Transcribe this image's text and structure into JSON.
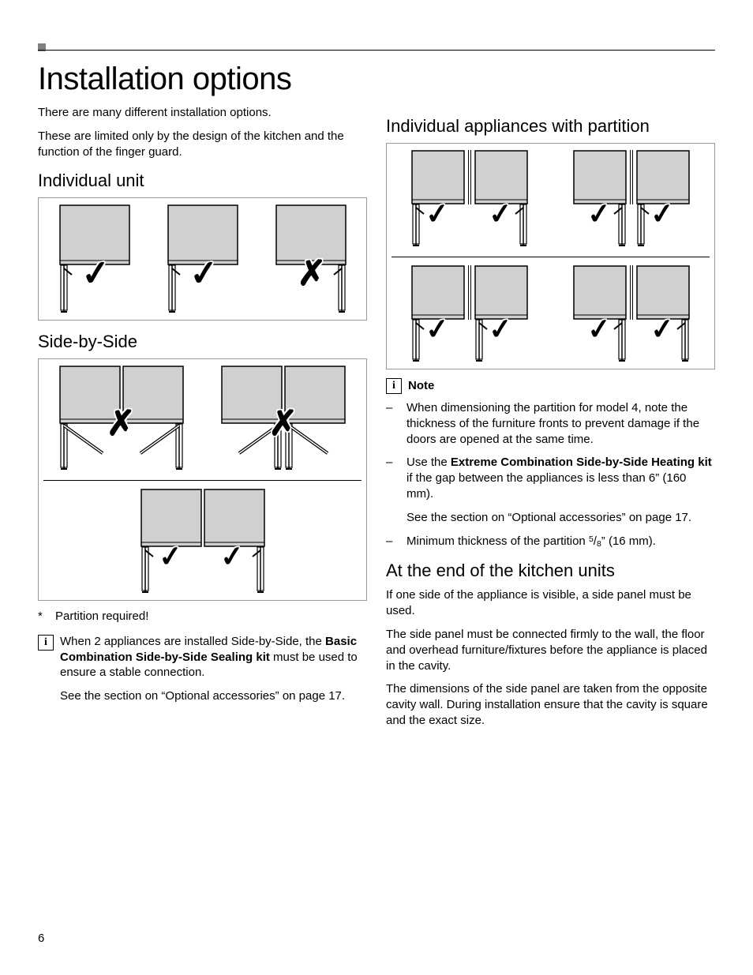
{
  "page_number": "6",
  "title": "Installation options",
  "intro": {
    "p1": "There are many different installation options.",
    "p2": "These are limited only by the design of the kitchen and the function of the finger guard."
  },
  "left": {
    "h_individual": "Individual unit",
    "h_sidebyside": "Side-by-Side",
    "footnote_marker": "*",
    "footnote": "Partition required!",
    "info_p1_a": "When 2 appliances are installed Side-by-Side, the ",
    "info_p1_bold": "Basic Combination Side-by-Side Sealing kit",
    "info_p1_b": " must be used to ensure a stable connection.",
    "info_p2": "See the section on “Optional accessories” on page 17."
  },
  "right": {
    "h_partition": "Individual appliances with partition",
    "note_label": "Note",
    "note_items": {
      "n1": "When dimensioning the partition for model 4, note the thickness of the furniture fronts to prevent damage if the doors are opened at the same time.",
      "n2_a": "Use the ",
      "n2_bold": "Extreme Combination Side-by-Side Heating kit",
      "n2_b": " if the gap between the appliances is less than 6” (160 mm).",
      "n2_p2": "See the section on “Optional accessories” on page 17.",
      "n3_a": "Minimum thickness of the partition ",
      "n3_num": "5",
      "n3_den": "8",
      "n3_b": "” (16 mm)."
    },
    "h_end": "At the end of the kitchen units",
    "end_p1": "If one side of the appliance is visible, a side panel must be used.",
    "end_p2": "The side panel must be connected firmly to the wall, the floor and overhead furniture/fixtures before the appliance is placed in the cavity.",
    "end_p3": "The dimensions of the side panel are taken from the opposite cavity wall. During installation ensure that the cavity is square and the exact size."
  },
  "figures": {
    "appliance_fill": "#d0d0d0",
    "appliance_stroke": "#000000",
    "hinge_stroke": "#000000",
    "individual": {
      "units": [
        {
          "hinge": "left",
          "mark": "tick"
        },
        {
          "hinge": "left",
          "mark": "tick"
        },
        {
          "hinge": "right",
          "mark": "cross"
        }
      ]
    },
    "sidebyside": {
      "row1": [
        {
          "units": [
            {
              "hinge": "left-open"
            },
            {
              "hinge": "right-open"
            }
          ],
          "mark": "cross",
          "gap": 0
        },
        {
          "units": [
            {
              "hinge": "right-open"
            },
            {
              "hinge": "left-open"
            }
          ],
          "mark": "cross",
          "gap": 0
        }
      ],
      "row2": [
        {
          "units": [
            {
              "hinge": "left"
            },
            {
              "hinge": "right"
            }
          ],
          "mark": "tick",
          "gap": 0,
          "mark_per_unit": true
        }
      ]
    },
    "partition": {
      "row1": [
        {
          "units": [
            {
              "hinge": "left"
            },
            {
              "hinge": "right"
            }
          ],
          "gap": 12,
          "mark_per_unit": true,
          "mark": "tick"
        },
        {
          "units": [
            {
              "hinge": "right"
            },
            {
              "hinge": "left"
            }
          ],
          "gap": 12,
          "mark_per_unit": true,
          "mark": "tick"
        }
      ],
      "row2": [
        {
          "units": [
            {
              "hinge": "left"
            },
            {
              "hinge": "left"
            }
          ],
          "gap": 12,
          "mark_per_unit": true,
          "mark": "tick"
        },
        {
          "units": [
            {
              "hinge": "right"
            },
            {
              "hinge": "right"
            }
          ],
          "gap": 12,
          "mark_per_unit": true,
          "mark": "tick"
        }
      ]
    }
  }
}
